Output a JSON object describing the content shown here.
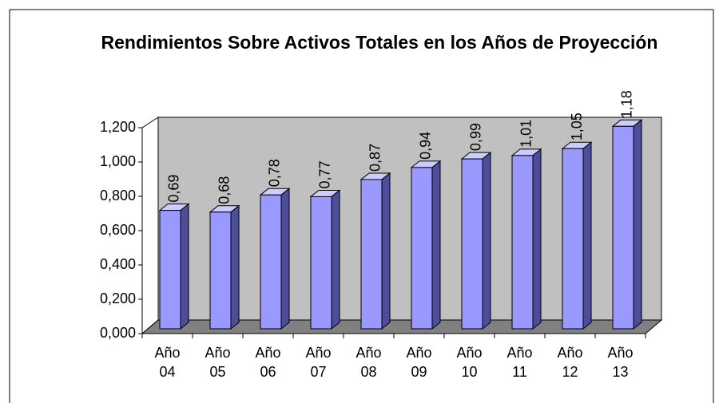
{
  "chart_data": {
    "type": "bar3d",
    "title": "Rendimientos Sobre Activos Totales en los Años de Proyección",
    "categories": [
      "Año 04",
      "Año 05",
      "Año 06",
      "Año 07",
      "Año 08",
      "Año 09",
      "Año 10",
      "Año 11",
      "Año 12",
      "Año 13"
    ],
    "values": [
      0.69,
      0.68,
      0.78,
      0.77,
      0.87,
      0.94,
      0.99,
      1.01,
      1.05,
      1.18
    ],
    "value_labels": [
      "0,69",
      "0,68",
      "0,78",
      "0,77",
      "0,87",
      "0,94",
      "0,99",
      "1,01",
      "1,05",
      "1,18"
    ],
    "color": "#9999ff",
    "ylim": [
      0,
      1.2
    ],
    "yticks": [
      {
        "value": 0,
        "label": "0,000"
      },
      {
        "value": 0.2,
        "label": "0,200"
      },
      {
        "value": 0.4,
        "label": "0,400"
      },
      {
        "value": 0.6,
        "label": "0,600"
      },
      {
        "value": 0.8,
        "label": "0,800"
      },
      {
        "value": 1.0,
        "label": "1,000"
      },
      {
        "value": 1.2,
        "label": "1,200"
      }
    ]
  }
}
